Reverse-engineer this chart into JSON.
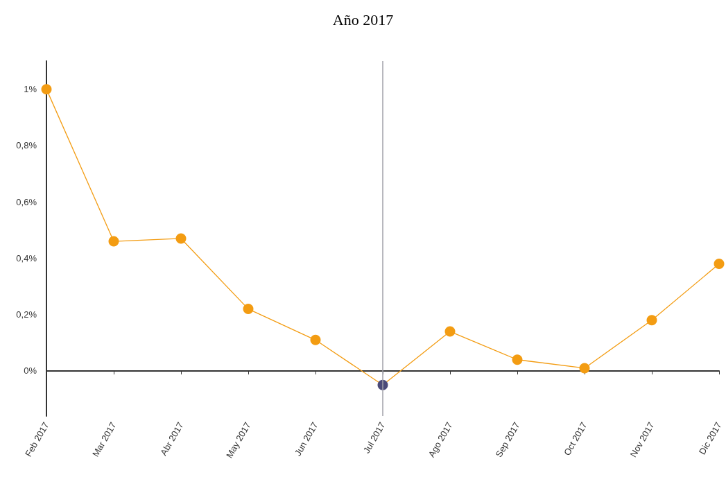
{
  "chart_data": {
    "type": "line",
    "title": "Año 2017",
    "categories": [
      "Feb 2017",
      "Mar 2017",
      "Abr 2017",
      "May 2017",
      "Jun 2017",
      "Jul 2017",
      "Ago 2017",
      "Sep 2017",
      "Oct 2017",
      "Nov 2017",
      "Dic 2017"
    ],
    "series": [
      {
        "color": "#f39c12",
        "values": [
          1.0,
          0.46,
          0.47,
          0.22,
          0.11,
          -0.05,
          0.14,
          0.04,
          0.01,
          0.18,
          0.38
        ],
        "colors": [
          "#f39c12",
          "#f39c12",
          "#f39c12",
          "#f39c12",
          "#f39c12",
          "#4b4a78",
          "#f39c12",
          "#f39c12",
          "#f39c12",
          "#f39c12",
          "#f39c12"
        ]
      }
    ],
    "ylim": [
      -0.16,
      1.1
    ],
    "yticks": [
      {
        "value": 0,
        "label": "0%"
      },
      {
        "value": 0.2,
        "label": "0,2%"
      },
      {
        "value": 0.4,
        "label": "0,4%"
      },
      {
        "value": 0.6,
        "label": "0,6%"
      },
      {
        "value": 0.8,
        "label": "0,8%"
      },
      {
        "value": 1,
        "label": "1%"
      }
    ],
    "ref_lines": [
      {
        "axis": "x",
        "value": "Jul 2017",
        "color": "#a0a0a8"
      }
    ],
    "grid": false,
    "marker": "circle",
    "line_style": "solid"
  }
}
